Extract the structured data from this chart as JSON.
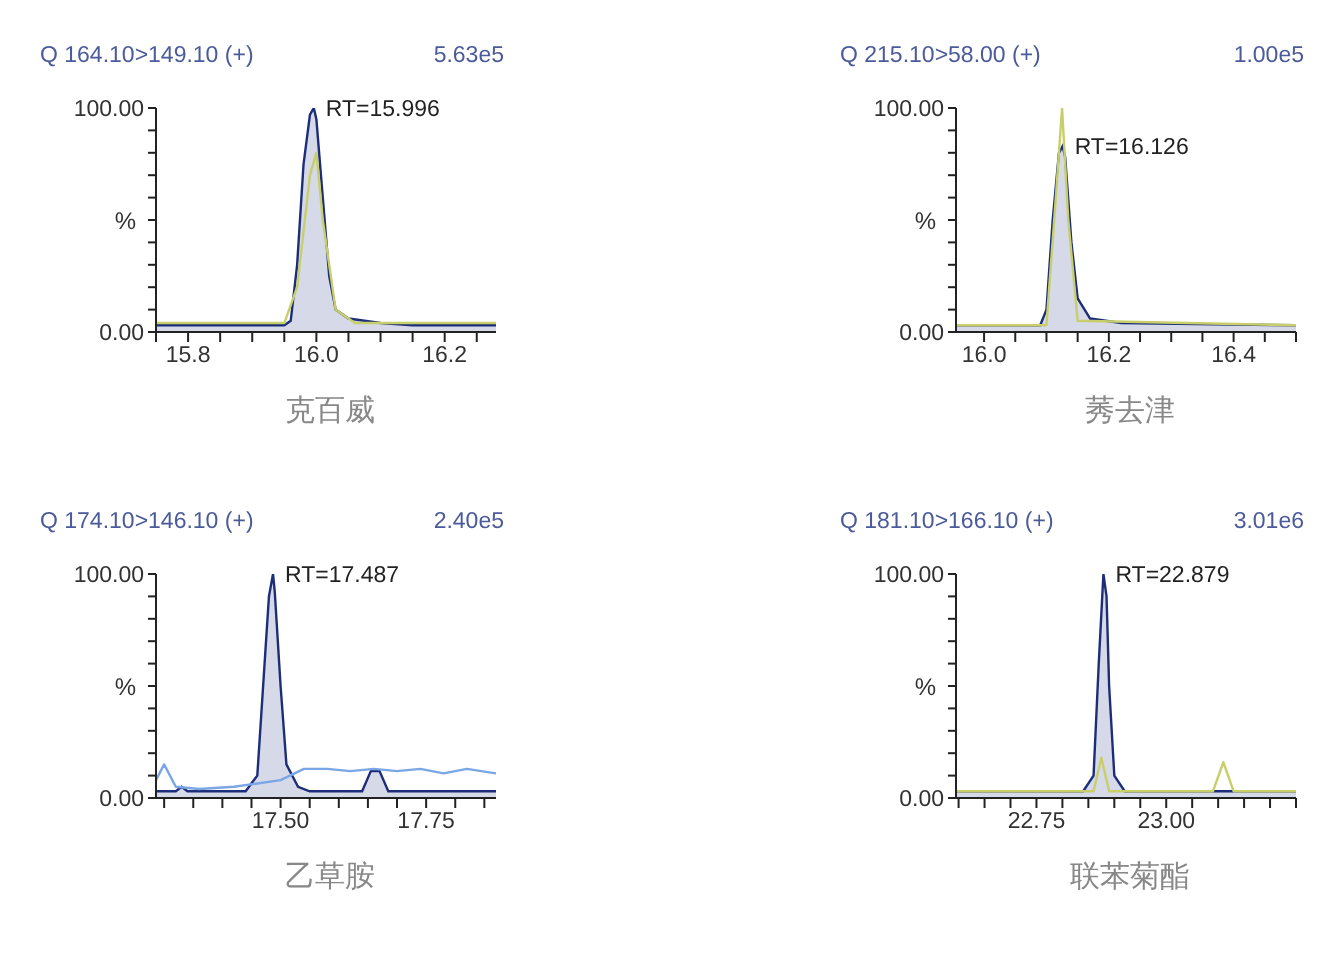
{
  "chart_data": [
    {
      "type": "line",
      "title": "Q 164.10>149.10 (+)",
      "subtitle": "5.63e5",
      "xlabel": "克百威",
      "ylabel": "%",
      "xlim": [
        15.75,
        16.28
      ],
      "xticks": [
        {
          "value": 15.75,
          "label": null
        },
        {
          "value": 15.8,
          "label": "15.8"
        },
        {
          "value": 15.85,
          "label": null
        },
        {
          "value": 15.9,
          "label": null
        },
        {
          "value": 15.95,
          "label": null
        },
        {
          "value": 16.0,
          "label": "16.0"
        },
        {
          "value": 16.05,
          "label": null
        },
        {
          "value": 16.1,
          "label": null
        },
        {
          "value": 16.15,
          "label": null
        },
        {
          "value": 16.2,
          "label": "16.2"
        },
        {
          "value": 16.25,
          "label": null
        }
      ],
      "ylim": [
        0,
        100
      ],
      "yticks": [
        {
          "value": 0,
          "label": "0.00"
        },
        {
          "value": 10,
          "label": null
        },
        {
          "value": 20,
          "label": null
        },
        {
          "value": 30,
          "label": null
        },
        {
          "value": 40,
          "label": null
        },
        {
          "value": 50,
          "label": null
        },
        {
          "value": 60,
          "label": null
        },
        {
          "value": 70,
          "label": null
        },
        {
          "value": 80,
          "label": null
        },
        {
          "value": 90,
          "label": null
        },
        {
          "value": 100,
          "label": "100.00"
        }
      ],
      "annotations": [
        {
          "text": "RT=15.996",
          "x": 15.996,
          "y": 100
        }
      ],
      "series": [
        {
          "color": "#c8cf6a",
          "x": [
            15.75,
            15.95,
            15.97,
            15.99,
            16.0,
            16.01,
            16.03,
            16.06,
            16.28
          ],
          "values": [
            4,
            4,
            20,
            70,
            80,
            50,
            10,
            4,
            4
          ]
        },
        {
          "type": "area",
          "color": "#1c2e7a",
          "x": [
            15.75,
            15.9,
            15.95,
            15.96,
            15.97,
            15.98,
            15.99,
            15.996,
            16.0,
            16.01,
            16.02,
            16.03,
            16.05,
            16.1,
            16.15,
            16.2,
            16.28
          ],
          "values": [
            3,
            3,
            3,
            5,
            30,
            75,
            97,
            100,
            95,
            60,
            25,
            10,
            6,
            4,
            3,
            3,
            3
          ]
        }
      ]
    },
    {
      "type": "line",
      "title": "Q 215.10>58.00 (+)",
      "subtitle": "1.00e5",
      "xlabel": "莠去津",
      "ylabel": "%",
      "xlim": [
        15.955,
        16.5
      ],
      "xticks": [
        {
          "value": 16.0,
          "label": "16.0"
        },
        {
          "value": 16.05,
          "label": null
        },
        {
          "value": 16.1,
          "label": null
        },
        {
          "value": 16.15,
          "label": null
        },
        {
          "value": 16.2,
          "label": "16.2"
        },
        {
          "value": 16.25,
          "label": null
        },
        {
          "value": 16.3,
          "label": null
        },
        {
          "value": 16.35,
          "label": null
        },
        {
          "value": 16.4,
          "label": "16.4"
        },
        {
          "value": 16.45,
          "label": null
        },
        {
          "value": 16.5,
          "label": null
        }
      ],
      "ylim": [
        0,
        100
      ],
      "yticks": [
        {
          "value": 0,
          "label": "0.00"
        },
        {
          "value": 10,
          "label": null
        },
        {
          "value": 20,
          "label": null
        },
        {
          "value": 30,
          "label": null
        },
        {
          "value": 40,
          "label": null
        },
        {
          "value": 50,
          "label": null
        },
        {
          "value": 60,
          "label": null
        },
        {
          "value": 70,
          "label": null
        },
        {
          "value": 80,
          "label": null
        },
        {
          "value": 90,
          "label": null
        },
        {
          "value": 100,
          "label": "100.00"
        }
      ],
      "annotations": [
        {
          "text": "RT=16.126",
          "x": 16.126,
          "y": 83
        }
      ],
      "series": [
        {
          "color": "#c8cf6a",
          "x": [
            15.955,
            16.1,
            16.115,
            16.125,
            16.135,
            16.15,
            16.5
          ],
          "values": [
            3,
            3,
            60,
            100,
            50,
            5,
            3
          ]
        },
        {
          "type": "area",
          "color": "#1c2e7a",
          "x": [
            15.955,
            16.05,
            16.09,
            16.1,
            16.11,
            16.12,
            16.126,
            16.13,
            16.14,
            16.15,
            16.17,
            16.22,
            16.5
          ],
          "values": [
            3,
            3,
            3,
            10,
            50,
            80,
            83,
            78,
            40,
            15,
            6,
            4,
            3
          ]
        }
      ]
    },
    {
      "type": "line",
      "title": "Q 174.10>146.10 (+)",
      "subtitle": "2.40e5",
      "xlabel": "乙草胺",
      "ylabel": "%",
      "xlim": [
        17.286,
        17.87
      ],
      "xticks": [
        {
          "value": 17.3,
          "label": null
        },
        {
          "value": 17.35,
          "label": null
        },
        {
          "value": 17.4,
          "label": null
        },
        {
          "value": 17.45,
          "label": null
        },
        {
          "value": 17.5,
          "label": "17.50"
        },
        {
          "value": 17.55,
          "label": null
        },
        {
          "value": 17.6,
          "label": null
        },
        {
          "value": 17.65,
          "label": null
        },
        {
          "value": 17.7,
          "label": null
        },
        {
          "value": 17.75,
          "label": "17.75"
        },
        {
          "value": 17.8,
          "label": null
        },
        {
          "value": 17.85,
          "label": null
        }
      ],
      "ylim": [
        0,
        100
      ],
      "yticks": [
        {
          "value": 0,
          "label": "0.00"
        },
        {
          "value": 10,
          "label": null
        },
        {
          "value": 20,
          "label": null
        },
        {
          "value": 30,
          "label": null
        },
        {
          "value": 40,
          "label": null
        },
        {
          "value": 50,
          "label": null
        },
        {
          "value": 60,
          "label": null
        },
        {
          "value": 70,
          "label": null
        },
        {
          "value": 80,
          "label": null
        },
        {
          "value": 90,
          "label": null
        },
        {
          "value": 100,
          "label": "100.00"
        }
      ],
      "annotations": [
        {
          "text": "RT=17.487",
          "x": 17.487,
          "y": 100
        }
      ],
      "series": [
        {
          "color": "#7aa6e6",
          "x": [
            17.286,
            17.3,
            17.32,
            17.36,
            17.42,
            17.5,
            17.54,
            17.58,
            17.62,
            17.66,
            17.7,
            17.74,
            17.78,
            17.82,
            17.87
          ],
          "values": [
            8,
            15,
            5,
            4,
            5,
            8,
            13,
            13,
            12,
            13,
            12,
            13,
            11,
            13,
            11
          ]
        },
        {
          "type": "area",
          "color": "#1c2e7a",
          "x": [
            17.286,
            17.32,
            17.33,
            17.34,
            17.44,
            17.46,
            17.47,
            17.48,
            17.487,
            17.49,
            17.5,
            17.51,
            17.53,
            17.55,
            17.64,
            17.655,
            17.67,
            17.685,
            17.87
          ],
          "values": [
            3,
            3,
            5,
            3,
            3,
            10,
            50,
            90,
            100,
            92,
            50,
            15,
            5,
            3,
            3,
            12,
            12,
            3,
            3
          ]
        }
      ]
    },
    {
      "type": "line",
      "title": "Q 181.10>166.10 (+)",
      "subtitle": "3.01e6",
      "xlabel": "联苯菊酯",
      "ylabel": "%",
      "xlim": [
        22.595,
        23.25
      ],
      "xticks": [
        {
          "value": 22.6,
          "label": null
        },
        {
          "value": 22.65,
          "label": null
        },
        {
          "value": 22.7,
          "label": null
        },
        {
          "value": 22.75,
          "label": "22.75"
        },
        {
          "value": 22.8,
          "label": null
        },
        {
          "value": 22.85,
          "label": null
        },
        {
          "value": 22.9,
          "label": null
        },
        {
          "value": 22.95,
          "label": null
        },
        {
          "value": 23.0,
          "label": "23.00"
        },
        {
          "value": 23.05,
          "label": null
        },
        {
          "value": 23.1,
          "label": null
        },
        {
          "value": 23.15,
          "label": null
        },
        {
          "value": 23.2,
          "label": null
        },
        {
          "value": 23.25,
          "label": null
        }
      ],
      "ylim": [
        0,
        100
      ],
      "yticks": [
        {
          "value": 0,
          "label": "0.00"
        },
        {
          "value": 10,
          "label": null
        },
        {
          "value": 20,
          "label": null
        },
        {
          "value": 30,
          "label": null
        },
        {
          "value": 40,
          "label": null
        },
        {
          "value": 50,
          "label": null
        },
        {
          "value": 60,
          "label": null
        },
        {
          "value": 70,
          "label": null
        },
        {
          "value": 80,
          "label": null
        },
        {
          "value": 90,
          "label": null
        },
        {
          "value": 100,
          "label": "100.00"
        }
      ],
      "annotations": [
        {
          "text": "RT=22.879",
          "x": 22.879,
          "y": 100
        }
      ],
      "series": [
        {
          "color": "#c8cf6a",
          "x": [
            22.595,
            22.86,
            22.875,
            22.89,
            23.09,
            23.11,
            23.13,
            23.25
          ],
          "values": [
            3,
            3,
            18,
            3,
            3,
            16,
            3,
            3
          ]
        },
        {
          "type": "area",
          "color": "#1c2e7a",
          "x": [
            22.595,
            22.84,
            22.86,
            22.87,
            22.879,
            22.885,
            22.89,
            22.9,
            22.92,
            23.25
          ],
          "values": [
            3,
            3,
            10,
            60,
            100,
            90,
            50,
            10,
            3,
            3
          ]
        }
      ]
    }
  ]
}
